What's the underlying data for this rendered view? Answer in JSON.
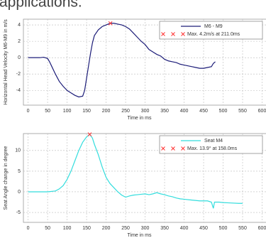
{
  "heading": "applications.",
  "chart_data": [
    {
      "type": "line",
      "x_label": "Time in ms",
      "y_label": "Horizontal Head Velocity M6-M9 in m/s",
      "xlim": [
        -12,
        610
      ],
      "ylim": [
        -5.8,
        4.7
      ],
      "xticks": [
        0,
        50,
        100,
        150,
        200,
        250,
        300,
        350,
        400,
        450,
        500,
        550,
        600
      ],
      "yticks": [
        -4,
        -2,
        0,
        2,
        4
      ],
      "grid": true,
      "legend": "upper right",
      "x": [
        0,
        10,
        20,
        30,
        40,
        50,
        55,
        60,
        70,
        80,
        90,
        100,
        110,
        120,
        130,
        140,
        145,
        150,
        155,
        160,
        165,
        170,
        180,
        190,
        200,
        211,
        220,
        230,
        240,
        250,
        260,
        270,
        280,
        290,
        300,
        310,
        320,
        330,
        340,
        350,
        360,
        370,
        380,
        390,
        400,
        410,
        420,
        430,
        440,
        450,
        460,
        470,
        475,
        480
      ],
      "series": [
        {
          "name": "M6 - M9",
          "color": "#1c1c78",
          "values": [
            0,
            0,
            0,
            0,
            0.05,
            -0.1,
            -0.5,
            -1,
            -2,
            -2.9,
            -3.5,
            -4,
            -4.3,
            -4.6,
            -4.8,
            -4.7,
            -4,
            -2.5,
            -1,
            0.5,
            1.8,
            2.7,
            3.4,
            3.8,
            4,
            4.2,
            4.2,
            4.1,
            4,
            3.8,
            3.5,
            3.0,
            2.5,
            2.0,
            1.6,
            1.0,
            0.7,
            0.4,
            0.2,
            -0.2,
            -0.4,
            -0.5,
            -0.6,
            -0.8,
            -0.9,
            -1.0,
            -1.1,
            -1.2,
            -1.3,
            -1.3,
            -1.2,
            -1.1,
            -0.7,
            -0.5
          ]
        }
      ],
      "max_marker": {
        "label": "Max. 4.2m/s at 211.0ms",
        "x": 211.0,
        "y": 4.2,
        "color": "#ff3333"
      }
    },
    {
      "type": "line",
      "x_label": "Time in ms",
      "y_label": "Seat Angle change in degree",
      "xlim": [
        -12,
        610
      ],
      "ylim": [
        -7.4,
        14.1
      ],
      "xticks": [
        0,
        50,
        100,
        150,
        200,
        250,
        300,
        350,
        400,
        450,
        500,
        550,
        600
      ],
      "yticks": [
        -5,
        0,
        5,
        10
      ],
      "grid": true,
      "legend": "upper right",
      "x": [
        0,
        50,
        70,
        80,
        90,
        100,
        110,
        120,
        130,
        140,
        150,
        158,
        165,
        170,
        180,
        190,
        200,
        210,
        220,
        230,
        240,
        250,
        260,
        270,
        280,
        290,
        300,
        310,
        320,
        330,
        340,
        350,
        360,
        370,
        380,
        390,
        400,
        420,
        440,
        460,
        470,
        475,
        478,
        490,
        500,
        520,
        540,
        550
      ],
      "series": [
        {
          "name": "Seat M4",
          "color": "#33dddd",
          "values": [
            0,
            0,
            0.2,
            0.7,
            1.5,
            3,
            5,
            7.5,
            10,
            12,
            13.3,
            13.9,
            13,
            11.5,
            9,
            6,
            3.5,
            2,
            1,
            0,
            -0.8,
            -1.3,
            -1,
            -0.8,
            -0.7,
            -0.6,
            -0.5,
            -0.7,
            -0.5,
            -0.2,
            -0.5,
            -0.7,
            -1,
            -1.2,
            -1.5,
            -1.7,
            -1.8,
            -2,
            -2.2,
            -2.2,
            -2.5,
            -4,
            -2.5,
            -2.5,
            -2.6,
            -2.7,
            -2.8,
            -2.8
          ]
        }
      ],
      "max_marker": {
        "label": "Max. 13.9° at 158.0ms",
        "x": 158.0,
        "y": 13.9,
        "color": "#ff3333"
      }
    }
  ]
}
